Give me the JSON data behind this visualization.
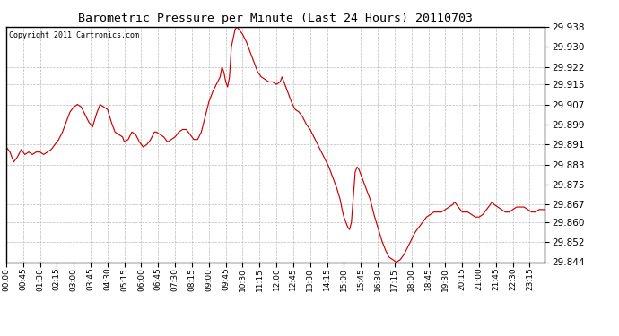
{
  "title": "Barometric Pressure per Minute (Last 24 Hours) 20110703",
  "copyright": "Copyright 2011 Cartronics.com",
  "line_color": "#cc0000",
  "bg_color": "#ffffff",
  "plot_bg_color": "#ffffff",
  "grid_color": "#bbbbbb",
  "ylim": [
    29.844,
    29.938
  ],
  "yticks": [
    29.844,
    29.852,
    29.86,
    29.867,
    29.875,
    29.883,
    29.891,
    29.899,
    29.907,
    29.915,
    29.922,
    29.93,
    29.938
  ],
  "xtick_labels": [
    "00:00",
    "00:45",
    "01:30",
    "02:15",
    "03:00",
    "03:45",
    "04:30",
    "05:15",
    "06:00",
    "06:45",
    "07:30",
    "08:15",
    "09:00",
    "09:45",
    "10:30",
    "11:15",
    "12:00",
    "12:45",
    "13:30",
    "14:15",
    "15:00",
    "15:45",
    "16:30",
    "17:15",
    "18:00",
    "18:45",
    "19:30",
    "20:15",
    "21:00",
    "21:45",
    "22:30",
    "23:15"
  ],
  "keypoints": [
    [
      0,
      29.89
    ],
    [
      10,
      29.888
    ],
    [
      20,
      29.884
    ],
    [
      30,
      29.886
    ],
    [
      40,
      29.889
    ],
    [
      50,
      29.887
    ],
    [
      60,
      29.888
    ],
    [
      70,
      29.887
    ],
    [
      80,
      29.888
    ],
    [
      90,
      29.888
    ],
    [
      100,
      29.887
    ],
    [
      110,
      29.888
    ],
    [
      120,
      29.889
    ],
    [
      130,
      29.891
    ],
    [
      140,
      29.893
    ],
    [
      150,
      29.896
    ],
    [
      160,
      29.9
    ],
    [
      170,
      29.904
    ],
    [
      180,
      29.906
    ],
    [
      190,
      29.907
    ],
    [
      200,
      29.906
    ],
    [
      210,
      29.903
    ],
    [
      220,
      29.9
    ],
    [
      230,
      29.898
    ],
    [
      240,
      29.903
    ],
    [
      250,
      29.907
    ],
    [
      260,
      29.906
    ],
    [
      270,
      29.905
    ],
    [
      280,
      29.9
    ],
    [
      290,
      29.896
    ],
    [
      300,
      29.895
    ],
    [
      310,
      29.894
    ],
    [
      315,
      29.892
    ],
    [
      325,
      29.893
    ],
    [
      335,
      29.896
    ],
    [
      345,
      29.895
    ],
    [
      355,
      29.892
    ],
    [
      365,
      29.89
    ],
    [
      375,
      29.891
    ],
    [
      385,
      29.893
    ],
    [
      395,
      29.896
    ],
    [
      400,
      29.896
    ],
    [
      410,
      29.895
    ],
    [
      420,
      29.894
    ],
    [
      430,
      29.892
    ],
    [
      440,
      29.893
    ],
    [
      450,
      29.894
    ],
    [
      460,
      29.896
    ],
    [
      470,
      29.897
    ],
    [
      480,
      29.897
    ],
    [
      490,
      29.895
    ],
    [
      500,
      29.893
    ],
    [
      510,
      29.893
    ],
    [
      520,
      29.896
    ],
    [
      530,
      29.902
    ],
    [
      540,
      29.908
    ],
    [
      550,
      29.912
    ],
    [
      560,
      29.915
    ],
    [
      570,
      29.918
    ],
    [
      575,
      29.922
    ],
    [
      580,
      29.92
    ],
    [
      585,
      29.916
    ],
    [
      590,
      29.914
    ],
    [
      595,
      29.918
    ],
    [
      600,
      29.93
    ],
    [
      610,
      29.937
    ],
    [
      615,
      29.938
    ],
    [
      620,
      29.937
    ],
    [
      630,
      29.935
    ],
    [
      640,
      29.932
    ],
    [
      650,
      29.928
    ],
    [
      660,
      29.924
    ],
    [
      665,
      29.922
    ],
    [
      670,
      29.92
    ],
    [
      680,
      29.918
    ],
    [
      690,
      29.917
    ],
    [
      700,
      29.916
    ],
    [
      710,
      29.916
    ],
    [
      720,
      29.915
    ],
    [
      730,
      29.916
    ],
    [
      735,
      29.918
    ],
    [
      740,
      29.916
    ],
    [
      745,
      29.914
    ],
    [
      750,
      29.912
    ],
    [
      760,
      29.908
    ],
    [
      770,
      29.905
    ],
    [
      780,
      29.904
    ],
    [
      790,
      29.902
    ],
    [
      800,
      29.899
    ],
    [
      810,
      29.897
    ],
    [
      820,
      29.894
    ],
    [
      830,
      29.891
    ],
    [
      840,
      29.888
    ],
    [
      850,
      29.885
    ],
    [
      860,
      29.882
    ],
    [
      870,
      29.878
    ],
    [
      880,
      29.874
    ],
    [
      890,
      29.869
    ],
    [
      895,
      29.865
    ],
    [
      900,
      29.862
    ],
    [
      905,
      29.86
    ],
    [
      910,
      29.858
    ],
    [
      915,
      29.857
    ],
    [
      920,
      29.86
    ],
    [
      930,
      29.88
    ],
    [
      935,
      29.882
    ],
    [
      940,
      29.881
    ],
    [
      945,
      29.879
    ],
    [
      950,
      29.877
    ],
    [
      960,
      29.873
    ],
    [
      970,
      29.869
    ],
    [
      975,
      29.866
    ],
    [
      980,
      29.863
    ],
    [
      990,
      29.858
    ],
    [
      1000,
      29.853
    ],
    [
      1010,
      29.849
    ],
    [
      1020,
      29.846
    ],
    [
      1030,
      29.845
    ],
    [
      1040,
      29.844
    ],
    [
      1050,
      29.845
    ],
    [
      1060,
      29.847
    ],
    [
      1070,
      29.85
    ],
    [
      1080,
      29.853
    ],
    [
      1090,
      29.856
    ],
    [
      1100,
      29.858
    ],
    [
      1110,
      29.86
    ],
    [
      1120,
      29.862
    ],
    [
      1130,
      29.863
    ],
    [
      1140,
      29.864
    ],
    [
      1150,
      29.864
    ],
    [
      1160,
      29.864
    ],
    [
      1170,
      29.865
    ],
    [
      1180,
      29.866
    ],
    [
      1190,
      29.867
    ],
    [
      1195,
      29.868
    ],
    [
      1200,
      29.867
    ],
    [
      1205,
      29.866
    ],
    [
      1210,
      29.865
    ],
    [
      1215,
      29.864
    ],
    [
      1220,
      29.864
    ],
    [
      1230,
      29.864
    ],
    [
      1240,
      29.863
    ],
    [
      1250,
      29.862
    ],
    [
      1260,
      29.862
    ],
    [
      1270,
      29.863
    ],
    [
      1280,
      29.865
    ],
    [
      1290,
      29.867
    ],
    [
      1295,
      29.868
    ],
    [
      1300,
      29.867
    ],
    [
      1310,
      29.866
    ],
    [
      1320,
      29.865
    ],
    [
      1330,
      29.864
    ],
    [
      1340,
      29.864
    ],
    [
      1350,
      29.865
    ],
    [
      1360,
      29.866
    ],
    [
      1370,
      29.866
    ],
    [
      1380,
      29.866
    ],
    [
      1390,
      29.865
    ],
    [
      1400,
      29.864
    ],
    [
      1410,
      29.864
    ],
    [
      1420,
      29.865
    ],
    [
      1430,
      29.865
    ],
    [
      1435,
      29.865
    ]
  ]
}
